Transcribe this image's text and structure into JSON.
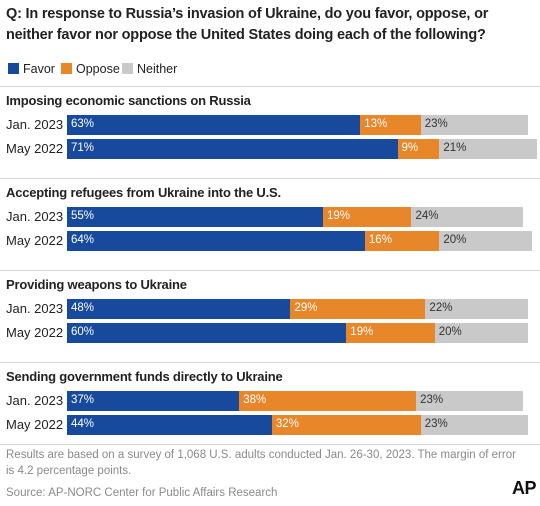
{
  "question": "Q: In response to Russia’s invasion of Ukraine, do you favor, oppose, or neither favor nor oppose the United States doing each of the following?",
  "legend": [
    {
      "label": "Favor",
      "color": "#174a9c"
    },
    {
      "label": "Oppose",
      "color": "#e8862a"
    },
    {
      "label": "Neither",
      "color": "#c9c9c9"
    }
  ],
  "chart_data": {
    "type": "bar",
    "orientation": "horizontal",
    "stacked": true,
    "unit": "%",
    "series_names": [
      "Favor",
      "Oppose",
      "Neither"
    ],
    "groups": [
      {
        "title": "Imposing economic sanctions on Russia",
        "rows": [
          {
            "label": "Jan. 2023",
            "values": [
              63,
              13,
              23
            ],
            "labels": [
              "63%",
              "13%",
              "23%"
            ]
          },
          {
            "label": "May 2022",
            "values": [
              71,
              9,
              21
            ],
            "labels": [
              "71%",
              "9%",
              "21%"
            ]
          }
        ]
      },
      {
        "title": "Accepting refugees from Ukraine into the U.S.",
        "rows": [
          {
            "label": "Jan. 2023",
            "values": [
              55,
              19,
              24
            ],
            "labels": [
              "55%",
              "19%",
              "24%"
            ]
          },
          {
            "label": "May 2022",
            "values": [
              64,
              16,
              20
            ],
            "labels": [
              "64%",
              "16%",
              "20%"
            ]
          }
        ]
      },
      {
        "title": "Providing weapons to Ukraine",
        "rows": [
          {
            "label": "Jan. 2023",
            "values": [
              48,
              29,
              22
            ],
            "labels": [
              "48%",
              "29%",
              "22%"
            ]
          },
          {
            "label": "May 2022",
            "values": [
              60,
              19,
              20
            ],
            "labels": [
              "60%",
              "19%",
              "20%"
            ]
          }
        ]
      },
      {
        "title": "Sending government funds directly to Ukraine",
        "rows": [
          {
            "label": "Jan. 2023",
            "values": [
              37,
              38,
              23
            ],
            "labels": [
              "37%",
              "38%",
              "23%"
            ]
          },
          {
            "label": "May 2022",
            "values": [
              44,
              32,
              23
            ],
            "labels": [
              "44%",
              "32%",
              "23%"
            ]
          }
        ]
      }
    ]
  },
  "footnote": "Results are based on a survey of 1,068 U.S. adults conducted Jan. 26-30, 2023. The margin of error is 4.2 percentage points.",
  "source": "Source: AP-NORC Center for Public Affairs Research",
  "logo_text": "AP"
}
